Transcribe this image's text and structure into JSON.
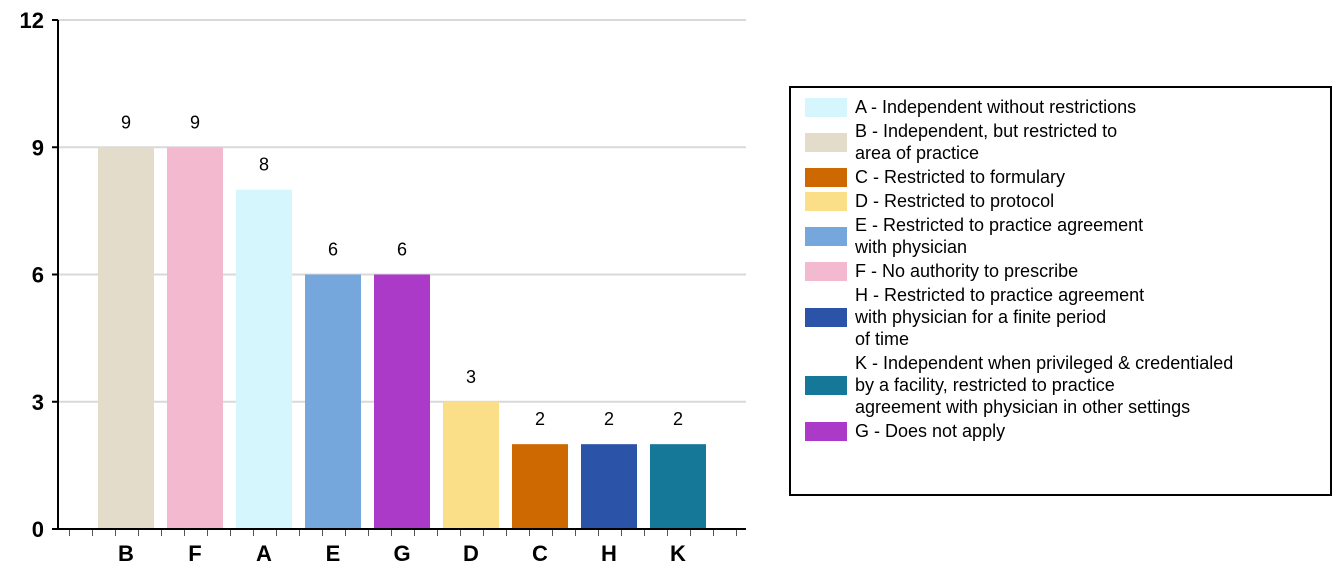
{
  "chart_data": {
    "type": "bar",
    "title": "",
    "xlabel": "",
    "ylabel": "",
    "ylim": [
      0,
      12
    ],
    "yticks": [
      0,
      3,
      6,
      9,
      12
    ],
    "grid": true,
    "legend_position": "right",
    "categories": [
      "B",
      "F",
      "A",
      "E",
      "G",
      "D",
      "C",
      "H",
      "K"
    ],
    "values": [
      9,
      9,
      8,
      6,
      6,
      3,
      2,
      2,
      2
    ],
    "colors": [
      "#e3dccb",
      "#f2b9cf",
      "#d4f6fc",
      "#76a7dc",
      "#aa3ac7",
      "#fbde88",
      "#cd6900",
      "#2b54a9",
      "#167898"
    ]
  },
  "legend": {
    "items": [
      {
        "label": "A - Independent without restrictions",
        "color": "#d4f6fc"
      },
      {
        "label": "B - Independent, but restricted to\narea of practice",
        "color": "#e3dccb"
      },
      {
        "label": "C - Restricted to formulary",
        "color": "#cd6900"
      },
      {
        "label": "D - Restricted to protocol",
        "color": "#fbde88"
      },
      {
        "label": "E - Restricted to practice agreement\nwith physician",
        "color": "#76a7dc"
      },
      {
        "label": "F - No authority to prescribe",
        "color": "#f2b9cf"
      },
      {
        "label": "H - Restricted to practice agreement\nwith physician for a finite period\nof time",
        "color": "#2b54a9"
      },
      {
        "label": "K - Independent when privileged & credentialed\nby a facility, restricted to practice\nagreement with physician in other settings",
        "color": "#167898"
      },
      {
        "label": "G - Does not apply",
        "color": "#aa3ac7"
      }
    ]
  }
}
